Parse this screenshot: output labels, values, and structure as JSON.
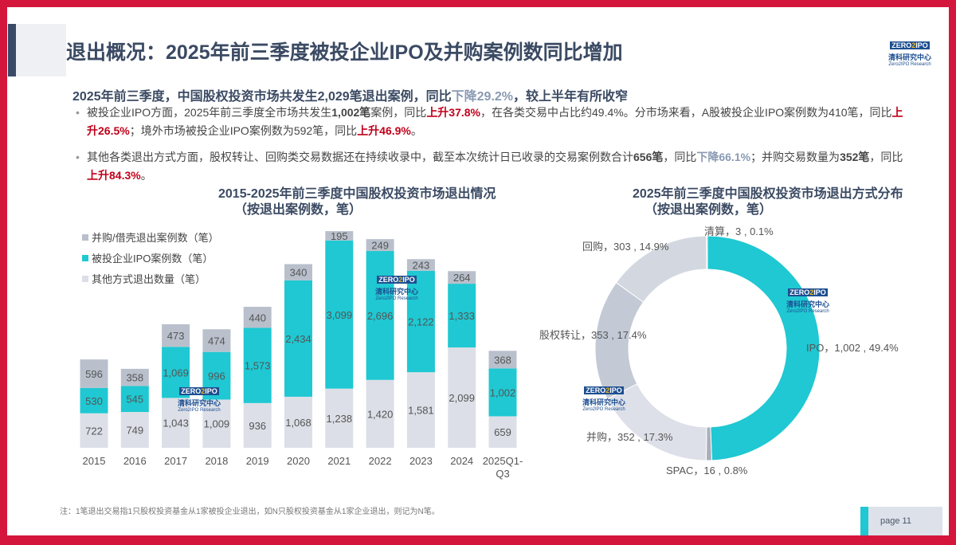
{
  "header": {
    "title": "退出概况：2025年前三季度被投企业IPO及并购案例数同比增加",
    "logo": {
      "brand": "ZERO2IPO",
      "cn": "清科研究中心",
      "en": "Zero2IPO Research"
    }
  },
  "summary": {
    "prefix": "2025年前三季度，中国股权投资市场共发生2,029笔退出案例，同比",
    "change": "下降29.2%",
    "suffix": "，较上半年有所收窄"
  },
  "bullets": [
    {
      "parts": [
        {
          "t": "被投企业IPO方面，2025年前三季度全市场共发生"
        },
        {
          "t": "1,002笔",
          "s": "b"
        },
        {
          "t": "案例，同比"
        },
        {
          "t": "上升37.8%",
          "s": "red"
        },
        {
          "t": "，在各类交易中占比约49.4%。分市场来看，A股被投企业IPO案例数为410笔，同比"
        },
        {
          "t": "上升26.5%",
          "s": "red"
        },
        {
          "t": "；境外市场被投企业IPO案例数为592笔，同比"
        },
        {
          "t": "上升46.9%",
          "s": "red"
        },
        {
          "t": "。"
        }
      ]
    },
    {
      "parts": [
        {
          "t": "其他各类退出方式方面，股权转让、回购类交易数据还在持续收录中，截至本次统计日已收录的交易案例数合计"
        },
        {
          "t": "656笔",
          "s": "b"
        },
        {
          "t": "，同比"
        },
        {
          "t": "下降66.1%",
          "s": "gray"
        },
        {
          "t": "；并购交易数量为"
        },
        {
          "t": "352笔",
          "s": "b"
        },
        {
          "t": "，同比"
        },
        {
          "t": "上升84.3%",
          "s": "red"
        },
        {
          "t": "。"
        }
      ]
    }
  ],
  "chart_data": [
    {
      "type": "bar",
      "stacked": true,
      "title": "2015-2025年前三季度中国股权投资市场退出情况",
      "subtitle": "（按退出案例数，笔）",
      "legend_position": "top-left",
      "categories": [
        "2015",
        "2016",
        "2017",
        "2018",
        "2019",
        "2020",
        "2021",
        "2022",
        "2023",
        "2024",
        "2025Q1-Q3"
      ],
      "series": [
        {
          "name": "其他方式退出数量（笔）",
          "color": "#dcdfe7",
          "values": [
            722,
            749,
            1043,
            1009,
            936,
            1068,
            1238,
            1420,
            1581,
            2099,
            659
          ]
        },
        {
          "name": "被投企业IPO案例数（笔）",
          "color": "#1fc8d2",
          "values": [
            530,
            545,
            1069,
            996,
            1573,
            2434,
            3099,
            2696,
            2122,
            1333,
            1002
          ]
        },
        {
          "name": "并购/借壳退出案例数（笔）",
          "color": "#b9c0cc",
          "values": [
            596,
            358,
            473,
            474,
            440,
            340,
            195,
            249,
            243,
            264,
            368
          ]
        }
      ],
      "data_labels": [
        [
          "722",
          "749",
          "1,043",
          "1,009",
          "936",
          "1,068",
          "1,238",
          "1,420",
          "1,581",
          "2,099",
          "659"
        ],
        [
          "530",
          "545",
          "1,069",
          "996",
          "1,573",
          "2,434",
          "3,099",
          "2,696",
          "2,122",
          "1,333",
          "1,002"
        ],
        [
          "596",
          "358",
          "473",
          "474",
          "440",
          "340",
          "195",
          "249",
          "243",
          "264",
          "368"
        ]
      ]
    },
    {
      "type": "pie",
      "donut": true,
      "title": "2025年前三季度中国股权投资市场退出方式分布",
      "subtitle": "（按退出案例数，笔）",
      "slices": [
        {
          "name": "IPO",
          "value": 1002,
          "percent": 49.4,
          "label": "IPO，1,002 , 49.4%",
          "color": "#1fc8d2"
        },
        {
          "name": "SPAC",
          "value": 16,
          "percent": 0.8,
          "label": "SPAC，16 , 0.8%",
          "color": "#a8afbb"
        },
        {
          "name": "并购",
          "value": 352,
          "percent": 17.3,
          "label": "并购，352 , 17.3%",
          "color": "#dde0e8"
        },
        {
          "name": "股权转让",
          "value": 353,
          "percent": 17.4,
          "label": "股权转让，353 , 17.4%",
          "color": "#c3cad6"
        },
        {
          "name": "回购",
          "value": 303,
          "percent": 14.9,
          "label": "回购，303 , 14.9%",
          "color": "#d3d8e0"
        },
        {
          "name": "清算",
          "value": 3,
          "percent": 0.1,
          "label": "清算，3 , 0.1%",
          "color": "#b9c0cc"
        }
      ]
    }
  ],
  "footer": {
    "note": "注：1笔退出交易指1只股权投资基金从1家被投企业退出，如N只股权投资基金从1家企业退出，则记为N笔。",
    "page": "page  11"
  }
}
